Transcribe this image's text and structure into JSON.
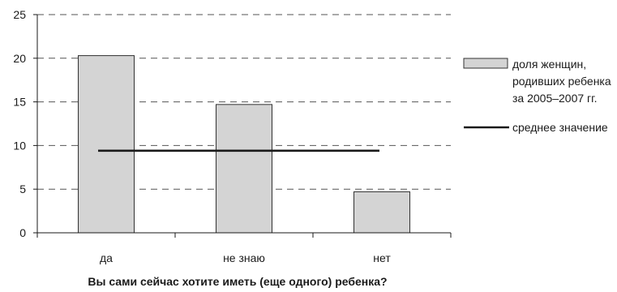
{
  "chart_data": {
    "type": "bar",
    "categories": [
      "да",
      "не знаю",
      "нет"
    ],
    "series": [
      {
        "name": "доля женщин, родивших ребенка за 2005–2007 гг.",
        "name_lines": [
          "доля женщин,",
          "родивших ребенка",
          "за 2005–2007 гг."
        ],
        "values": [
          20.3,
          14.7,
          4.7
        ],
        "color": "#d4d4d4",
        "edge_color": "#333333"
      }
    ],
    "reference_line": {
      "name": "среднее значение",
      "value": 9.4,
      "color": "#1a1a1a"
    },
    "xlabel": "Вы сами сейчас хотите иметь (еще одного) ребенка?",
    "ylabel": "",
    "title": "",
    "ylim": [
      0,
      25
    ],
    "yticks": [
      0,
      5,
      10,
      15,
      20,
      25
    ],
    "grid": true,
    "grid_style": "dashed",
    "legend_position": "right"
  }
}
